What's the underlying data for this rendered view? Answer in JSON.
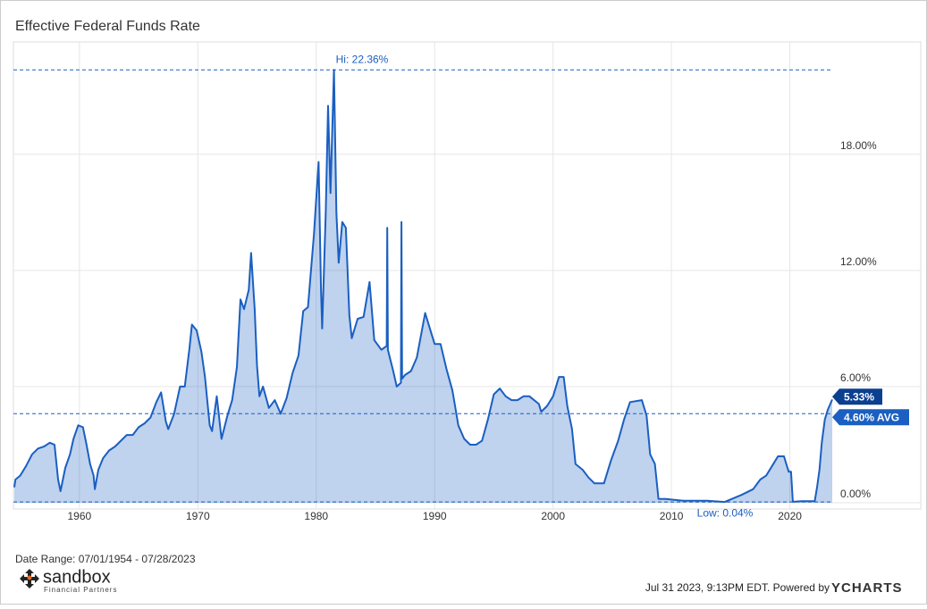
{
  "chart_data": {
    "type": "area",
    "title": "Effective Federal Funds Rate",
    "x": [
      1954.5,
      1954.6,
      1955,
      1955.5,
      1956,
      1956.5,
      1957,
      1957.5,
      1957.9,
      1958.2,
      1958.4,
      1958.8,
      1959.2,
      1959.5,
      1959.9,
      1960.3,
      1960.6,
      1960.9,
      1961.2,
      1961.3,
      1961.6,
      1962,
      1962.5,
      1963,
      1963.5,
      1964,
      1964.5,
      1965,
      1965.5,
      1966,
      1966.5,
      1966.9,
      1967.3,
      1967.5,
      1968,
      1968.5,
      1968.9,
      1969.3,
      1969.5,
      1969.9,
      1970.3,
      1970.6,
      1971,
      1971.2,
      1971.6,
      1972,
      1972.5,
      1972.9,
      1973.3,
      1973.6,
      1973.9,
      1974.3,
      1974.5,
      1974.8,
      1975,
      1975.2,
      1975.5,
      1976,
      1976.5,
      1977,
      1977.5,
      1978,
      1978.5,
      1978.9,
      1979.3,
      1979.8,
      1980.2,
      1980.4,
      1980.5,
      1980.8,
      1981,
      1981.2,
      1981.5,
      1981.7,
      1981.9,
      1982.2,
      1982.5,
      1982.8,
      1983,
      1983.5,
      1984,
      1984.5,
      1984.9,
      1985.5,
      1985.95,
      1986,
      1986.05,
      1986.5,
      1986.8,
      1987.15,
      1987.2,
      1987.25,
      1987.5,
      1988,
      1988.5,
      1989.2,
      1989.6,
      1990,
      1990.5,
      1991,
      1991.5,
      1992,
      1992.5,
      1993,
      1993.5,
      1994,
      1994.5,
      1995,
      1995.5,
      1996,
      1996.5,
      1997,
      1997.5,
      1998,
      1998.8,
      1999,
      1999.5,
      2000,
      2000.5,
      2000.9,
      2001.2,
      2001.6,
      2001.9,
      2002.5,
      2003,
      2003.5,
      2004.3,
      2004.9,
      2005.5,
      2006,
      2006.5,
      2007.5,
      2007.9,
      2008.2,
      2008.6,
      2008.9,
      2009.5,
      2011,
      2013,
      2014.5,
      2015.9,
      2016.9,
      2017.5,
      2018,
      2018.5,
      2019,
      2019.5,
      2019.9,
      2020.1,
      2020.25,
      2021,
      2022.1,
      2022.3,
      2022.5,
      2022.7,
      2022.95,
      2023.2,
      2023.58
    ],
    "values": [
      0.8,
      1.2,
      1.4,
      1.9,
      2.5,
      2.8,
      2.9,
      3.1,
      3.0,
      1.2,
      0.6,
      1.8,
      2.5,
      3.3,
      4.0,
      3.9,
      3.0,
      2.0,
      1.4,
      0.7,
      1.7,
      2.3,
      2.7,
      2.9,
      3.2,
      3.5,
      3.5,
      3.9,
      4.1,
      4.4,
      5.2,
      5.7,
      4.2,
      3.8,
      4.6,
      6.0,
      6.0,
      8.0,
      9.2,
      8.9,
      7.8,
      6.5,
      4.0,
      3.7,
      5.5,
      3.3,
      4.5,
      5.3,
      7.0,
      10.5,
      10.0,
      11.0,
      12.9,
      10.0,
      7.1,
      5.5,
      6.0,
      4.9,
      5.3,
      4.6,
      5.4,
      6.7,
      7.6,
      9.9,
      10.1,
      13.8,
      17.6,
      11.0,
      9.0,
      15.0,
      20.5,
      16.0,
      22.36,
      15.0,
      12.4,
      14.5,
      14.2,
      9.7,
      8.5,
      9.5,
      9.6,
      11.4,
      8.4,
      7.9,
      8.1,
      14.2,
      7.9,
      6.8,
      6.0,
      6.2,
      14.5,
      6.4,
      6.6,
      6.8,
      7.5,
      9.8,
      9.0,
      8.2,
      8.2,
      6.9,
      5.8,
      4.0,
      3.3,
      3.0,
      3.0,
      3.2,
      4.3,
      5.6,
      5.9,
      5.5,
      5.3,
      5.3,
      5.5,
      5.5,
      5.1,
      4.7,
      5.0,
      5.5,
      6.5,
      6.5,
      5.0,
      3.8,
      2.0,
      1.7,
      1.3,
      1.0,
      1.0,
      2.2,
      3.2,
      4.3,
      5.2,
      5.3,
      4.5,
      2.5,
      2.0,
      0.2,
      0.2,
      0.1,
      0.1,
      0.04,
      0.4,
      0.7,
      1.2,
      1.4,
      1.9,
      2.4,
      2.4,
      1.6,
      1.6,
      0.05,
      0.08,
      0.08,
      0.8,
      1.7,
      3.1,
      4.3,
      4.8,
      5.33
    ],
    "color": "#1a5fc1",
    "xlim": [
      1954.5,
      2023.58
    ],
    "ylim": [
      0,
      23.8
    ],
    "xticks": [
      1960,
      1970,
      1980,
      1990,
      2000,
      2010,
      2020
    ],
    "yticks": [
      {
        "value": 0,
        "label": "0.00%"
      },
      {
        "value": 6,
        "label": "6.00%"
      },
      {
        "value": 12,
        "label": "12.00%"
      },
      {
        "value": 18,
        "label": "18.00%"
      }
    ],
    "grid": true,
    "high": {
      "value": 22.36,
      "label": "Hi: 22.36%"
    },
    "low": {
      "value": 0.04,
      "label": "Low: 0.04%"
    },
    "average": {
      "value": 4.6,
      "label": "4.60% AVG"
    },
    "last": {
      "value": 5.33,
      "label": "5.33%"
    }
  },
  "footer": {
    "date_range": "Date Range: 07/01/1954 - 07/28/2023",
    "logo": "sandbox",
    "logo_sub": "Financial Partners",
    "timestamp": "Jul 31 2023, 9:13PM EDT. Powered by",
    "brand": "YCHARTS"
  }
}
